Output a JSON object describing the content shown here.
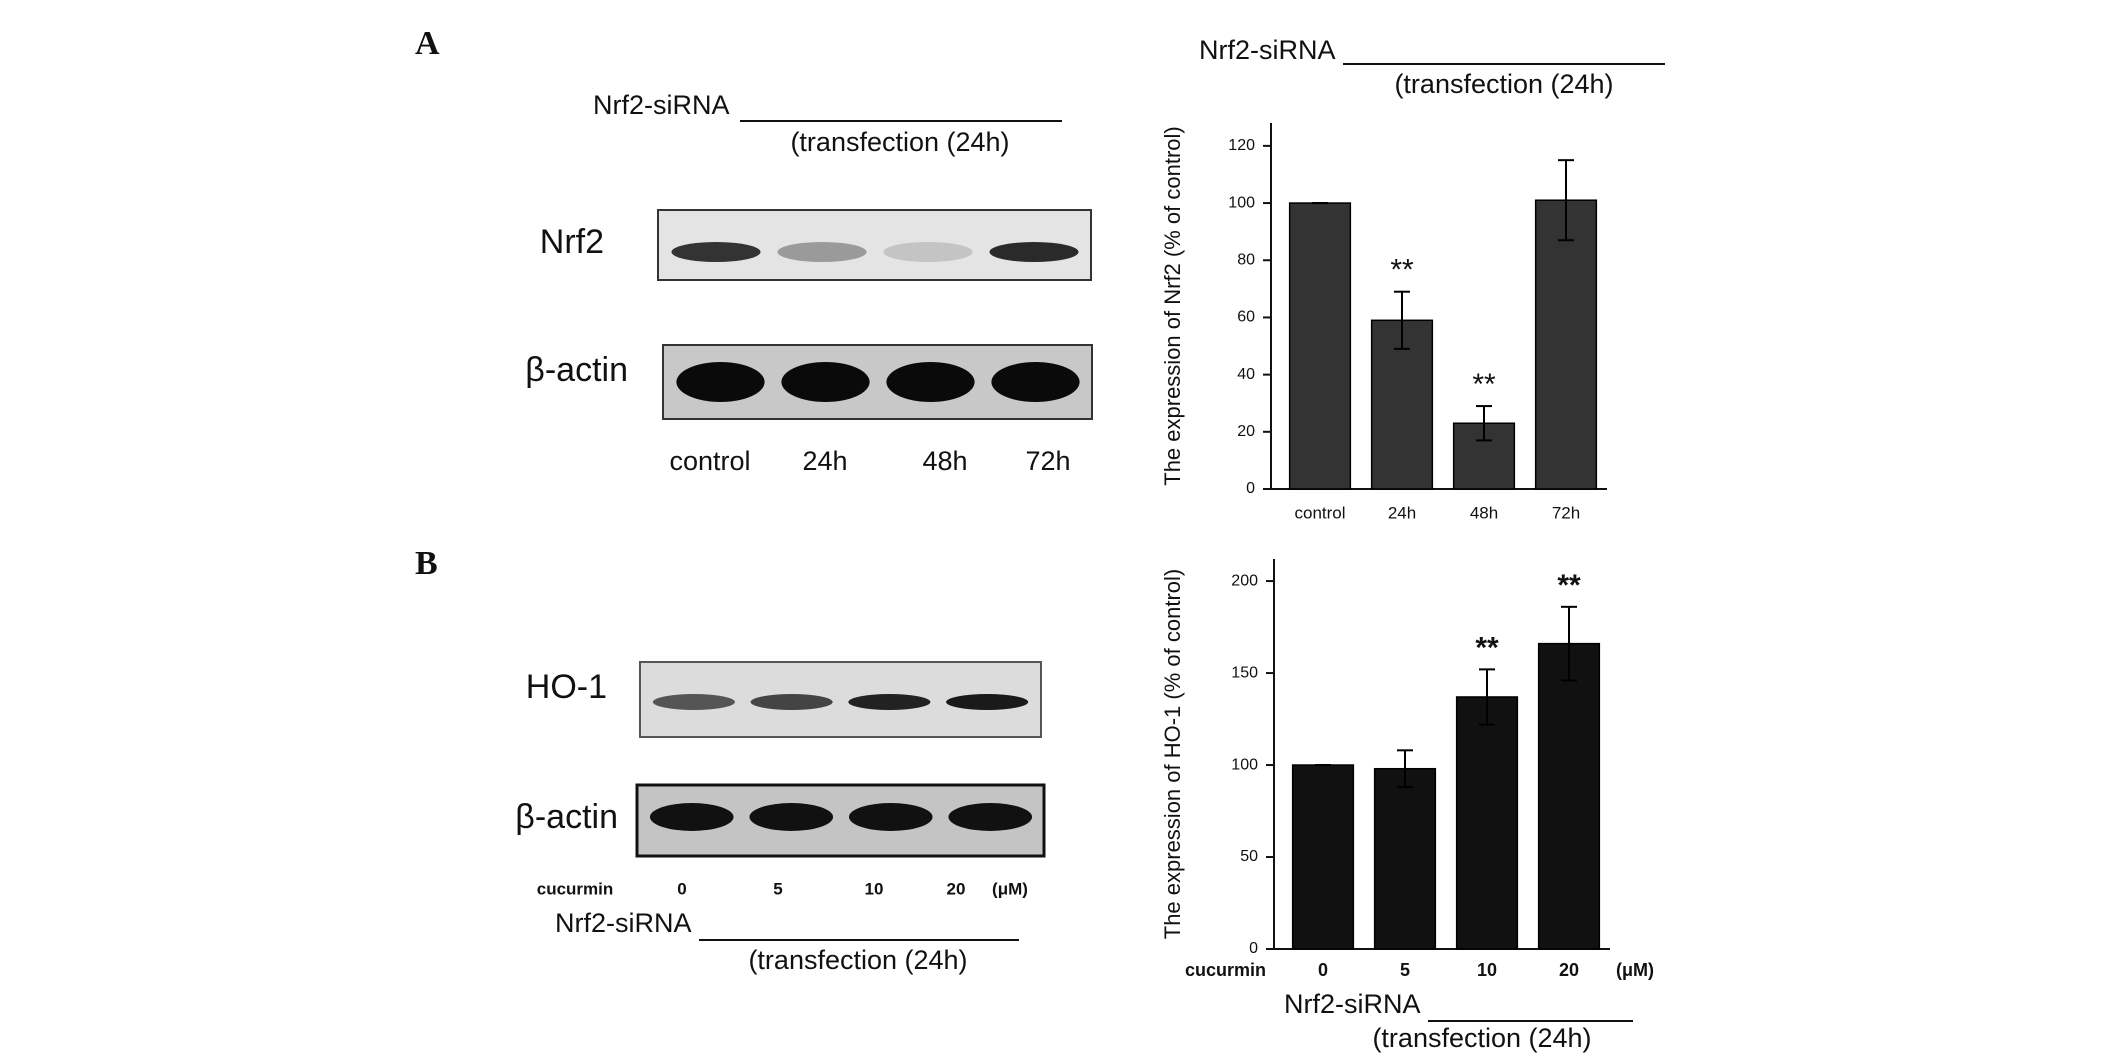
{
  "panels": [
    "A",
    "B"
  ],
  "blots": [
    {
      "siRNA_label": "Nrf2-siRNA",
      "siRNA_note": "(transfection (24h)",
      "rows": [
        "Nrf2",
        "β-actin"
      ],
      "lanes": [
        "control",
        "24h",
        "48h",
        "72h"
      ]
    },
    {
      "siRNA_label": "Nrf2-siRNA",
      "siRNA_note": "(transfection (24h)",
      "rows": [
        "HO-1",
        "β-actin"
      ],
      "x_prefix": "cucurmin",
      "lanes": [
        "0",
        "5",
        "10",
        "20"
      ],
      "x_unit": "(μM)"
    }
  ],
  "chart_data": [
    {
      "type": "bar",
      "siRNA_label": "Nrf2-siRNA",
      "siRNA_note": "(transfection (24h)",
      "y_label": "The expression of Nrf2 (% of control)",
      "categories": [
        "control",
        "24h",
        "48h",
        "72h"
      ],
      "values": [
        100,
        59,
        23,
        101
      ],
      "errors": [
        0,
        10,
        6,
        14
      ],
      "annotations": [
        null,
        "**",
        "**",
        null
      ],
      "color": "#333333",
      "ylim": [
        0,
        128
      ],
      "yticks": [
        0,
        20,
        40,
        60,
        80,
        100,
        120
      ]
    },
    {
      "type": "bar",
      "siRNA_label": "Nrf2-siRNA",
      "siRNA_note": "(transfection (24h)",
      "y_label": "The expression of HO-1 (% of control)",
      "x_prefix": "cucurmin",
      "categories": [
        "0",
        "5",
        "10",
        "20"
      ],
      "x_unit": "(μM)",
      "values": [
        100,
        98,
        137,
        166
      ],
      "errors": [
        0,
        10,
        15,
        20
      ],
      "annotations": [
        null,
        null,
        "**",
        "**"
      ],
      "color": "#111111",
      "ylim": [
        0,
        212
      ],
      "yticks": [
        0,
        50,
        100,
        150,
        200
      ]
    }
  ]
}
